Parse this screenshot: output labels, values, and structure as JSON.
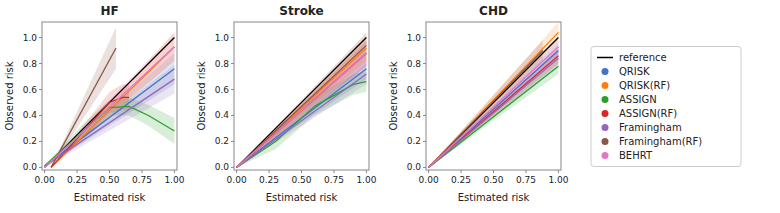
{
  "chart_data": [
    {
      "type": "line",
      "title": "HF",
      "x_label": "Estimated risk",
      "y_label": "Observed risk",
      "xlim": [
        -0.02,
        1.02
      ],
      "ylim": [
        -0.02,
        1.12
      ],
      "xticks": [
        {
          "value": 0,
          "label": "0.00"
        },
        0.25,
        {
          "value": 0.5,
          "label": "0.50"
        },
        0.75,
        {
          "value": 1,
          "label": "1.00"
        }
      ],
      "yticks": [
        {
          "value": 0,
          "label": "0.0"
        },
        0.2,
        0.4,
        0.6,
        0.8,
        {
          "value": 1,
          "label": "1.0"
        }
      ],
      "grid": false,
      "legend": "right",
      "series": [
        {
          "name": "reference",
          "color": "#000000",
          "x": [
            0.0,
            1.0
          ],
          "values": [
            0.0,
            1.0
          ]
        },
        {
          "name": "QRISK",
          "color": "#4472c4",
          "x": [
            0.0,
            1.0
          ],
          "values": [
            0.01,
            0.76
          ],
          "ci_lo": [
            0.0,
            0.64
          ],
          "ci_hi": [
            0.02,
            0.88
          ]
        },
        {
          "name": "QRISK(RF)",
          "color": "#ff7f0e",
          "x": [
            0.05,
            1.0
          ],
          "values": [
            0.0,
            0.93
          ],
          "ci_lo": [
            0.0,
            0.82
          ],
          "ci_hi": [
            0.0,
            1.04
          ]
        },
        {
          "name": "ASSIGN",
          "color": "#2ca02c",
          "x": [
            0.0,
            0.3,
            0.5,
            0.65,
            0.8,
            1.0
          ],
          "values": [
            0.01,
            0.28,
            0.46,
            0.47,
            0.4,
            0.28
          ],
          "ci_lo": [
            0.0,
            0.22,
            0.4,
            0.4,
            0.32,
            0.18
          ],
          "ci_hi": [
            0.02,
            0.34,
            0.52,
            0.54,
            0.48,
            0.38
          ]
        },
        {
          "name": "ASSIGN(RF)",
          "color": "#d62728",
          "x": [
            0.05,
            0.5,
            0.6,
            0.65
          ],
          "values": [
            0.0,
            0.5,
            0.54,
            0.54
          ],
          "ci_lo": [
            0.0,
            0.42,
            0.44,
            0.44
          ],
          "ci_hi": [
            0.0,
            0.58,
            0.64,
            0.64
          ]
        },
        {
          "name": "Framingham",
          "color": "#9467bd",
          "x": [
            0.0,
            1.0
          ],
          "values": [
            0.01,
            0.68
          ],
          "ci_lo": [
            0.0,
            0.57
          ],
          "ci_hi": [
            0.02,
            0.79
          ]
        },
        {
          "name": "Framingham(RF)",
          "color": "#8c564b",
          "x": [
            0.05,
            0.55
          ],
          "values": [
            0.0,
            0.92
          ],
          "ci_lo": [
            0.0,
            0.76
          ],
          "ci_hi": [
            0.0,
            1.08
          ]
        },
        {
          "name": "BEHRT",
          "color": "#e377c2",
          "x": [
            0.0,
            1.0
          ],
          "values": [
            0.0,
            0.93
          ],
          "ci_lo": [
            0.0,
            0.82
          ],
          "ci_hi": [
            0.0,
            1.04
          ]
        }
      ]
    },
    {
      "type": "line",
      "title": "Stroke",
      "x_label": "Estimated risk",
      "y_label": "Observed risk",
      "xlim": [
        -0.02,
        1.02
      ],
      "ylim": [
        -0.02,
        1.12
      ],
      "xticks": [
        {
          "value": 0,
          "label": "0.00"
        },
        0.25,
        {
          "value": 0.5,
          "label": "0.50"
        },
        0.75,
        {
          "value": 1,
          "label": "1.00"
        }
      ],
      "yticks": [
        {
          "value": 0,
          "label": "0.0"
        },
        0.2,
        0.4,
        0.6,
        0.8,
        {
          "value": 1,
          "label": "1.0"
        }
      ],
      "grid": false,
      "series": [
        {
          "color": "#000000",
          "x": [
            0.0,
            1.0
          ],
          "values": [
            0.0,
            1.0
          ]
        },
        {
          "color": "#4472c4",
          "x": [
            0.0,
            1.0
          ],
          "values": [
            0.0,
            0.76
          ],
          "ci_lo": [
            0.0,
            0.68
          ],
          "ci_hi": [
            0.0,
            0.84
          ]
        },
        {
          "color": "#ff7f0e",
          "x": [
            0.0,
            1.0
          ],
          "values": [
            0.0,
            0.92
          ],
          "ci_lo": [
            0.0,
            0.82
          ],
          "ci_hi": [
            0.0,
            1.02
          ]
        },
        {
          "color": "#2ca02c",
          "x": [
            0.0,
            0.3,
            0.6,
            0.9,
            1.0
          ],
          "values": [
            0.0,
            0.2,
            0.47,
            0.64,
            0.66
          ],
          "ci_lo": [
            0.0,
            0.14,
            0.4,
            0.56,
            0.58
          ],
          "ci_hi": [
            0.0,
            0.26,
            0.54,
            0.72,
            0.74
          ]
        },
        {
          "color": "#d62728",
          "x": [
            0.0,
            1.0
          ],
          "values": [
            0.0,
            0.88
          ],
          "ci_lo": [
            0.0,
            0.78
          ],
          "ci_hi": [
            0.0,
            0.98
          ]
        },
        {
          "color": "#9467bd",
          "x": [
            0.0,
            1.0
          ],
          "values": [
            0.0,
            0.72
          ],
          "ci_lo": [
            0.0,
            0.64
          ],
          "ci_hi": [
            0.0,
            0.8
          ]
        },
        {
          "color": "#8c564b",
          "x": [
            0.0,
            1.0
          ],
          "values": [
            0.0,
            0.94
          ],
          "ci_lo": [
            0.0,
            0.84
          ],
          "ci_hi": [
            0.0,
            1.04
          ]
        },
        {
          "color": "#e377c2",
          "x": [
            0.0,
            1.0
          ],
          "values": [
            0.0,
            0.88
          ],
          "ci_lo": [
            0.0,
            0.78
          ],
          "ci_hi": [
            0.0,
            0.98
          ]
        }
      ]
    },
    {
      "type": "line",
      "title": "CHD",
      "x_label": "Estimated risk",
      "y_label": "Observed risk",
      "xlim": [
        -0.02,
        1.02
      ],
      "ylim": [
        -0.02,
        1.12
      ],
      "xticks": [
        {
          "value": 0,
          "label": "0.00"
        },
        0.25,
        {
          "value": 0.5,
          "label": "0.50"
        },
        0.75,
        {
          "value": 1,
          "label": "1.00"
        }
      ],
      "yticks": [
        {
          "value": 0,
          "label": "0.0"
        },
        0.2,
        0.4,
        0.6,
        0.8,
        {
          "value": 1,
          "label": "1.0"
        }
      ],
      "grid": false,
      "series": [
        {
          "color": "#000000",
          "x": [
            0.0,
            1.0
          ],
          "values": [
            0.0,
            1.0
          ]
        },
        {
          "color": "#4472c4",
          "x": [
            0.0,
            1.0
          ],
          "values": [
            0.0,
            0.9
          ],
          "ci_lo": [
            0.0,
            0.84
          ],
          "ci_hi": [
            0.0,
            0.96
          ]
        },
        {
          "color": "#ff7f0e",
          "x": [
            0.0,
            1.0
          ],
          "values": [
            0.0,
            1.04
          ],
          "ci_lo": [
            0.0,
            0.96
          ],
          "ci_hi": [
            0.0,
            1.12
          ]
        },
        {
          "color": "#2ca02c",
          "x": [
            0.0,
            1.0
          ],
          "values": [
            0.0,
            0.78
          ],
          "ci_lo": [
            0.0,
            0.72
          ],
          "ci_hi": [
            0.0,
            0.84
          ]
        },
        {
          "color": "#d62728",
          "x": [
            0.0,
            1.0
          ],
          "values": [
            0.0,
            0.86
          ],
          "ci_lo": [
            0.0,
            0.8
          ],
          "ci_hi": [
            0.0,
            0.92
          ]
        },
        {
          "color": "#9467bd",
          "x": [
            0.0,
            1.0
          ],
          "values": [
            0.0,
            0.84
          ],
          "ci_lo": [
            0.0,
            0.78
          ],
          "ci_hi": [
            0.0,
            0.9
          ]
        },
        {
          "color": "#8c564b",
          "x": [
            0.0,
            0.88
          ],
          "values": [
            0.0,
            0.9
          ],
          "ci_lo": [
            0.0,
            0.82
          ],
          "ci_hi": [
            0.0,
            0.98
          ]
        },
        {
          "color": "#e377c2",
          "x": [
            0.0,
            1.0
          ],
          "values": [
            0.0,
            0.93
          ],
          "ci_lo": [
            0.0,
            0.87
          ],
          "ci_hi": [
            0.0,
            0.99
          ]
        }
      ]
    }
  ]
}
